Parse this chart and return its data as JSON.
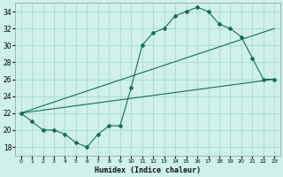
{
  "xlabel": "Humidex (Indice chaleur)",
  "bg_color": "#cff0eb",
  "grid_color": "#aaddd6",
  "line_color": "#1a6b5a",
  "xlim": [
    -0.5,
    23.5
  ],
  "ylim": [
    17,
    35
  ],
  "yticks": [
    18,
    20,
    22,
    24,
    26,
    28,
    30,
    32,
    34
  ],
  "xticks": [
    0,
    1,
    2,
    3,
    4,
    5,
    6,
    7,
    8,
    9,
    10,
    11,
    12,
    13,
    14,
    15,
    16,
    17,
    18,
    19,
    20,
    21,
    22,
    23
  ],
  "series1_x": [
    0,
    1,
    2,
    3,
    4,
    5,
    6,
    7,
    8,
    9,
    10,
    11,
    12,
    13,
    14,
    15,
    16,
    17,
    18,
    19,
    20,
    21,
    22,
    23
  ],
  "series1_y": [
    22,
    21,
    20,
    20,
    19.5,
    18.5,
    18.0,
    19.5,
    20.5,
    20.5,
    25,
    30,
    31.5,
    32,
    33.5,
    34.0,
    34.5,
    34.0,
    32.5,
    32,
    31,
    28.5,
    26,
    26
  ],
  "trend1_x": [
    0,
    23
  ],
  "trend1_y": [
    22,
    32
  ],
  "trend2_x": [
    0,
    23
  ],
  "trend2_y": [
    22,
    26
  ],
  "marker": "D",
  "marker_size": 2.0
}
